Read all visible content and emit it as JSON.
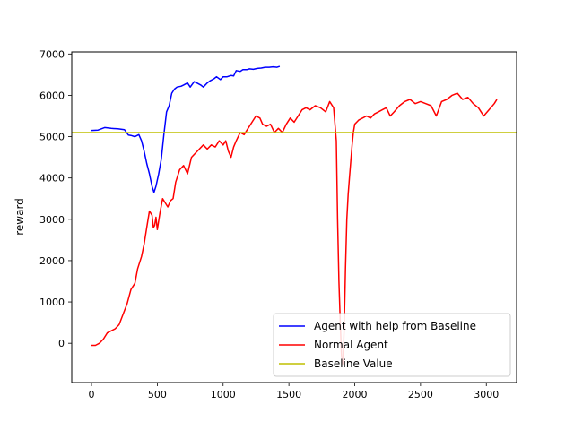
{
  "chart_data": {
    "type": "line",
    "title": "",
    "xlabel": "",
    "ylabel": "reward",
    "xlim": [
      -150,
      3230
    ],
    "ylim": [
      -950,
      7050
    ],
    "xticks": [
      0,
      500,
      1000,
      1500,
      2000,
      2500,
      3000
    ],
    "yticks": [
      0,
      1000,
      2000,
      3000,
      4000,
      5000,
      6000,
      7000
    ],
    "xtick_labels": [
      "0",
      "500",
      "1000",
      "1500",
      "2000",
      "2500",
      "3000"
    ],
    "ytick_labels": [
      "0",
      "1000",
      "2000",
      "3000",
      "4000",
      "5000",
      "6000",
      "7000"
    ],
    "grid": false,
    "legend_position": "lower-right",
    "series": [
      {
        "name": "Agent with help from Baseline",
        "color": "#0000ff",
        "x": [
          0,
          50,
          100,
          150,
          200,
          250,
          280,
          300,
          330,
          360,
          380,
          400,
          420,
          440,
          460,
          475,
          490,
          510,
          530,
          550,
          570,
          590,
          610,
          630,
          650,
          680,
          700,
          730,
          750,
          780,
          800,
          830,
          850,
          880,
          900,
          930,
          950,
          980,
          1000,
          1030,
          1060,
          1080,
          1100,
          1130,
          1150,
          1180,
          1200,
          1230,
          1260,
          1290,
          1320,
          1350,
          1380,
          1410,
          1430
        ],
        "y": [
          5150,
          5160,
          5220,
          5200,
          5190,
          5170,
          5040,
          5030,
          5000,
          5050,
          4900,
          4650,
          4350,
          4100,
          3800,
          3650,
          3800,
          4100,
          4450,
          5050,
          5600,
          5750,
          6050,
          6150,
          6200,
          6220,
          6250,
          6300,
          6200,
          6330,
          6300,
          6250,
          6200,
          6300,
          6350,
          6400,
          6450,
          6380,
          6450,
          6450,
          6480,
          6470,
          6600,
          6580,
          6620,
          6620,
          6640,
          6630,
          6650,
          6660,
          6680,
          6680,
          6690,
          6680,
          6700
        ]
      },
      {
        "name": "Normal Agent",
        "color": "#ff0000",
        "x": [
          0,
          30,
          60,
          90,
          120,
          150,
          180,
          210,
          240,
          270,
          300,
          330,
          350,
          380,
          400,
          420,
          440,
          460,
          470,
          480,
          490,
          500,
          520,
          540,
          560,
          580,
          600,
          620,
          640,
          670,
          700,
          730,
          760,
          790,
          820,
          850,
          880,
          910,
          940,
          970,
          1000,
          1020,
          1040,
          1060,
          1080,
          1100,
          1130,
          1160,
          1190,
          1220,
          1250,
          1280,
          1300,
          1330,
          1360,
          1390,
          1420,
          1450,
          1480,
          1510,
          1540,
          1570,
          1600,
          1630,
          1660,
          1700,
          1740,
          1780,
          1810,
          1840,
          1860,
          1870,
          1880,
          1890,
          1900,
          1910,
          1920,
          1930,
          1940,
          1950,
          1960,
          1970,
          1980,
          1990,
          2000,
          2030,
          2060,
          2090,
          2120,
          2150,
          2180,
          2210,
          2240,
          2270,
          2300,
          2340,
          2380,
          2420,
          2460,
          2500,
          2540,
          2580,
          2620,
          2660,
          2700,
          2740,
          2780,
          2820,
          2860,
          2900,
          2940,
          2980,
          3020,
          3060,
          3080
        ],
        "y": [
          -50,
          -50,
          0,
          100,
          250,
          300,
          350,
          450,
          700,
          950,
          1300,
          1450,
          1800,
          2100,
          2400,
          2800,
          3200,
          3100,
          2800,
          2850,
          3050,
          2750,
          3150,
          3500,
          3400,
          3300,
          3450,
          3500,
          3900,
          4200,
          4300,
          4100,
          4500,
          4600,
          4700,
          4800,
          4700,
          4800,
          4750,
          4900,
          4800,
          4900,
          4650,
          4500,
          4750,
          4900,
          5100,
          5050,
          5200,
          5350,
          5500,
          5450,
          5300,
          5250,
          5300,
          5100,
          5200,
          5100,
          5300,
          5450,
          5350,
          5500,
          5650,
          5700,
          5650,
          5750,
          5700,
          5600,
          5850,
          5700,
          4900,
          3000,
          1500,
          500,
          -300,
          -500,
          400,
          1800,
          3000,
          3600,
          4000,
          4400,
          4800,
          5100,
          5300,
          5400,
          5450,
          5500,
          5450,
          5550,
          5600,
          5650,
          5700,
          5500,
          5600,
          5750,
          5850,
          5900,
          5800,
          5850,
          5800,
          5750,
          5500,
          5850,
          5900,
          6000,
          6050,
          5900,
          5950,
          5800,
          5700,
          5500,
          5650,
          5800,
          5900
        ]
      },
      {
        "name": "Baseline Value",
        "color": "#bfbf00",
        "constant": 5100
      }
    ]
  }
}
